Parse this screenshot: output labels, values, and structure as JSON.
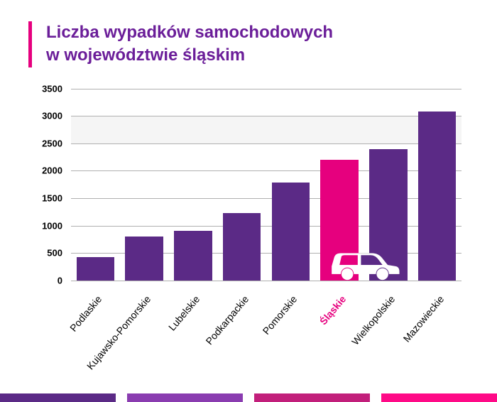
{
  "title": {
    "line1": "Liczba wypadków samochodowych",
    "line2": "w województwie śląskim",
    "color": "#6b1e99",
    "accent_border": "#e6007e",
    "fontsize": 24
  },
  "chart": {
    "type": "bar",
    "ylim": [
      0,
      3500
    ],
    "ytick_step": 500,
    "yticks": [
      0,
      500,
      1000,
      1500,
      2000,
      2500,
      3000,
      3500
    ],
    "grid_color": "#b0b0b0",
    "highlight_band": {
      "from": 2500,
      "to": 3000,
      "color": "#f5f5f5"
    },
    "background_color": "#ffffff",
    "bar_width": 0.78,
    "categories": [
      "Podlaskie",
      "Kujawsko-Pomorskie",
      "Lubelskie",
      "Podkarpackie",
      "Pomorskie",
      "Śląskie",
      "Wielkopolskie",
      "Mazowieckie"
    ],
    "values": [
      430,
      800,
      900,
      1230,
      1780,
      2200,
      2400,
      3080
    ],
    "bar_colors": [
      "#5b2a86",
      "#5b2a86",
      "#5b2a86",
      "#5b2a86",
      "#5b2a86",
      "#e6007e",
      "#5b2a86",
      "#5b2a86"
    ],
    "label_colors": [
      "#000000",
      "#000000",
      "#000000",
      "#000000",
      "#000000",
      "#e6007e",
      "#000000",
      "#000000"
    ],
    "label_bold": [
      false,
      false,
      false,
      false,
      false,
      true,
      false,
      false
    ],
    "label_fontsize": 14,
    "ytick_fontsize": 13,
    "car_icon_color": "#ffffff",
    "car_icon_between_index": 5
  },
  "footer_stripes": [
    "#5b2a86",
    "#8a3cb0",
    "#c21f7b",
    "#ff0a87"
  ]
}
